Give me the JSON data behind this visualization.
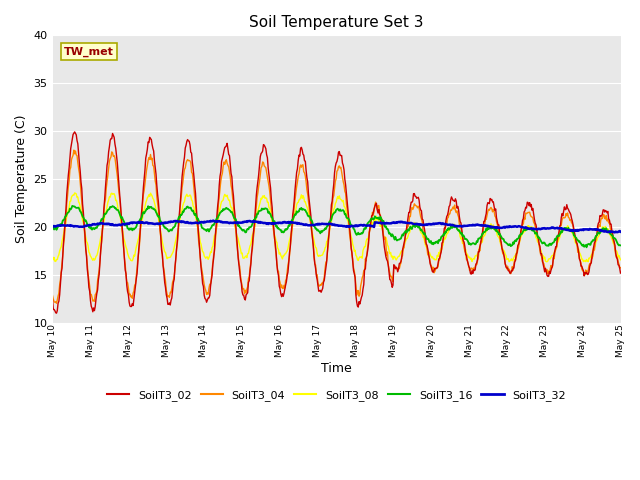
{
  "title": "Soil Temperature Set 3",
  "xlabel": "Time",
  "ylabel": "Soil Temperature (C)",
  "ylim": [
    10,
    40
  ],
  "bg_color": "#e8e8e8",
  "fig_color": "#ffffff",
  "series_colors": {
    "SoilT3_02": "#cc0000",
    "SoilT3_04": "#ff8800",
    "SoilT3_08": "#ffff00",
    "SoilT3_16": "#00bb00",
    "SoilT3_32": "#0000cc"
  },
  "tick_labels": [
    "May 10",
    "May 11",
    "May 12",
    "May 13",
    "May 14",
    "May 15",
    "May 16",
    "May 17",
    "May 18",
    "May 19",
    "May 20",
    "May 21",
    "May 22",
    "May 23",
    "May 24",
    "May 25"
  ],
  "yticks": [
    10,
    15,
    20,
    25,
    30,
    35,
    40
  ],
  "annotation": "TW_met"
}
